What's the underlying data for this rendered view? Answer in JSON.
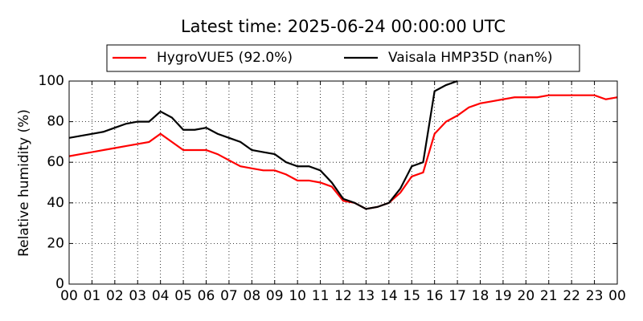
{
  "chart_data": {
    "type": "line",
    "title": "Latest time: 2025-06-24 00:00:00 UTC",
    "ylabel": "Relative humidity (%)",
    "x": [
      0,
      0.5,
      1,
      1.5,
      2,
      2.5,
      3,
      3.5,
      4,
      4.5,
      5,
      5.5,
      6,
      6.5,
      7,
      7.5,
      8,
      8.5,
      9,
      9.5,
      10,
      10.5,
      11,
      11.5,
      12,
      12.5,
      13,
      13.5,
      14,
      14.5,
      15,
      15.5,
      16,
      16.5,
      17,
      17.5,
      18,
      18.5,
      19,
      19.5,
      20,
      20.5,
      21,
      21.5,
      22,
      22.5,
      23,
      23.5,
      24
    ],
    "series": [
      {
        "name": "HygroVUE5 (92.0%)",
        "color": "#ff0000",
        "values": [
          63,
          64,
          65,
          66,
          67,
          68,
          69,
          70,
          74,
          70,
          66,
          66,
          66,
          64,
          61,
          58,
          57,
          56,
          56,
          54,
          51,
          51,
          50,
          48,
          41,
          40,
          37,
          38,
          40,
          45,
          53,
          55,
          74,
          80,
          83,
          87,
          89,
          90,
          91,
          92,
          92,
          92,
          93,
          93,
          93,
          93,
          93,
          91,
          92
        ]
      },
      {
        "name": "Vaisala HMP35D (nan%)",
        "color": "#000000",
        "values": [
          72,
          73,
          74,
          75,
          77,
          79,
          80,
          80,
          85,
          82,
          76,
          76,
          77,
          74,
          72,
          70,
          66,
          65,
          64,
          60,
          58,
          58,
          56,
          50,
          42,
          40,
          37,
          38,
          40,
          47,
          58,
          60,
          95,
          98,
          100,
          null,
          null,
          null,
          null,
          null,
          null,
          null,
          null,
          null,
          null,
          null,
          null,
          null,
          null
        ]
      }
    ],
    "xlim": [
      0,
      24
    ],
    "xticks": [
      {
        "value": 0,
        "label": "00"
      },
      {
        "value": 1,
        "label": "01"
      },
      {
        "value": 2,
        "label": "02"
      },
      {
        "value": 3,
        "label": "03"
      },
      {
        "value": 4,
        "label": "04"
      },
      {
        "value": 5,
        "label": "05"
      },
      {
        "value": 6,
        "label": "06"
      },
      {
        "value": 7,
        "label": "07"
      },
      {
        "value": 8,
        "label": "08"
      },
      {
        "value": 9,
        "label": "09"
      },
      {
        "value": 10,
        "label": "10"
      },
      {
        "value": 11,
        "label": "11"
      },
      {
        "value": 12,
        "label": "12"
      },
      {
        "value": 13,
        "label": "13"
      },
      {
        "value": 14,
        "label": "14"
      },
      {
        "value": 15,
        "label": "15"
      },
      {
        "value": 16,
        "label": "16"
      },
      {
        "value": 17,
        "label": "17"
      },
      {
        "value": 18,
        "label": "18"
      },
      {
        "value": 19,
        "label": "19"
      },
      {
        "value": 20,
        "label": "20"
      },
      {
        "value": 21,
        "label": "21"
      },
      {
        "value": 22,
        "label": "22"
      },
      {
        "value": 23,
        "label": "23"
      },
      {
        "value": 24,
        "label": "00"
      }
    ],
    "ylim": [
      0,
      100
    ],
    "yticks": [
      0,
      20,
      40,
      60,
      80,
      100
    ],
    "grid": true,
    "legend": "top"
  }
}
